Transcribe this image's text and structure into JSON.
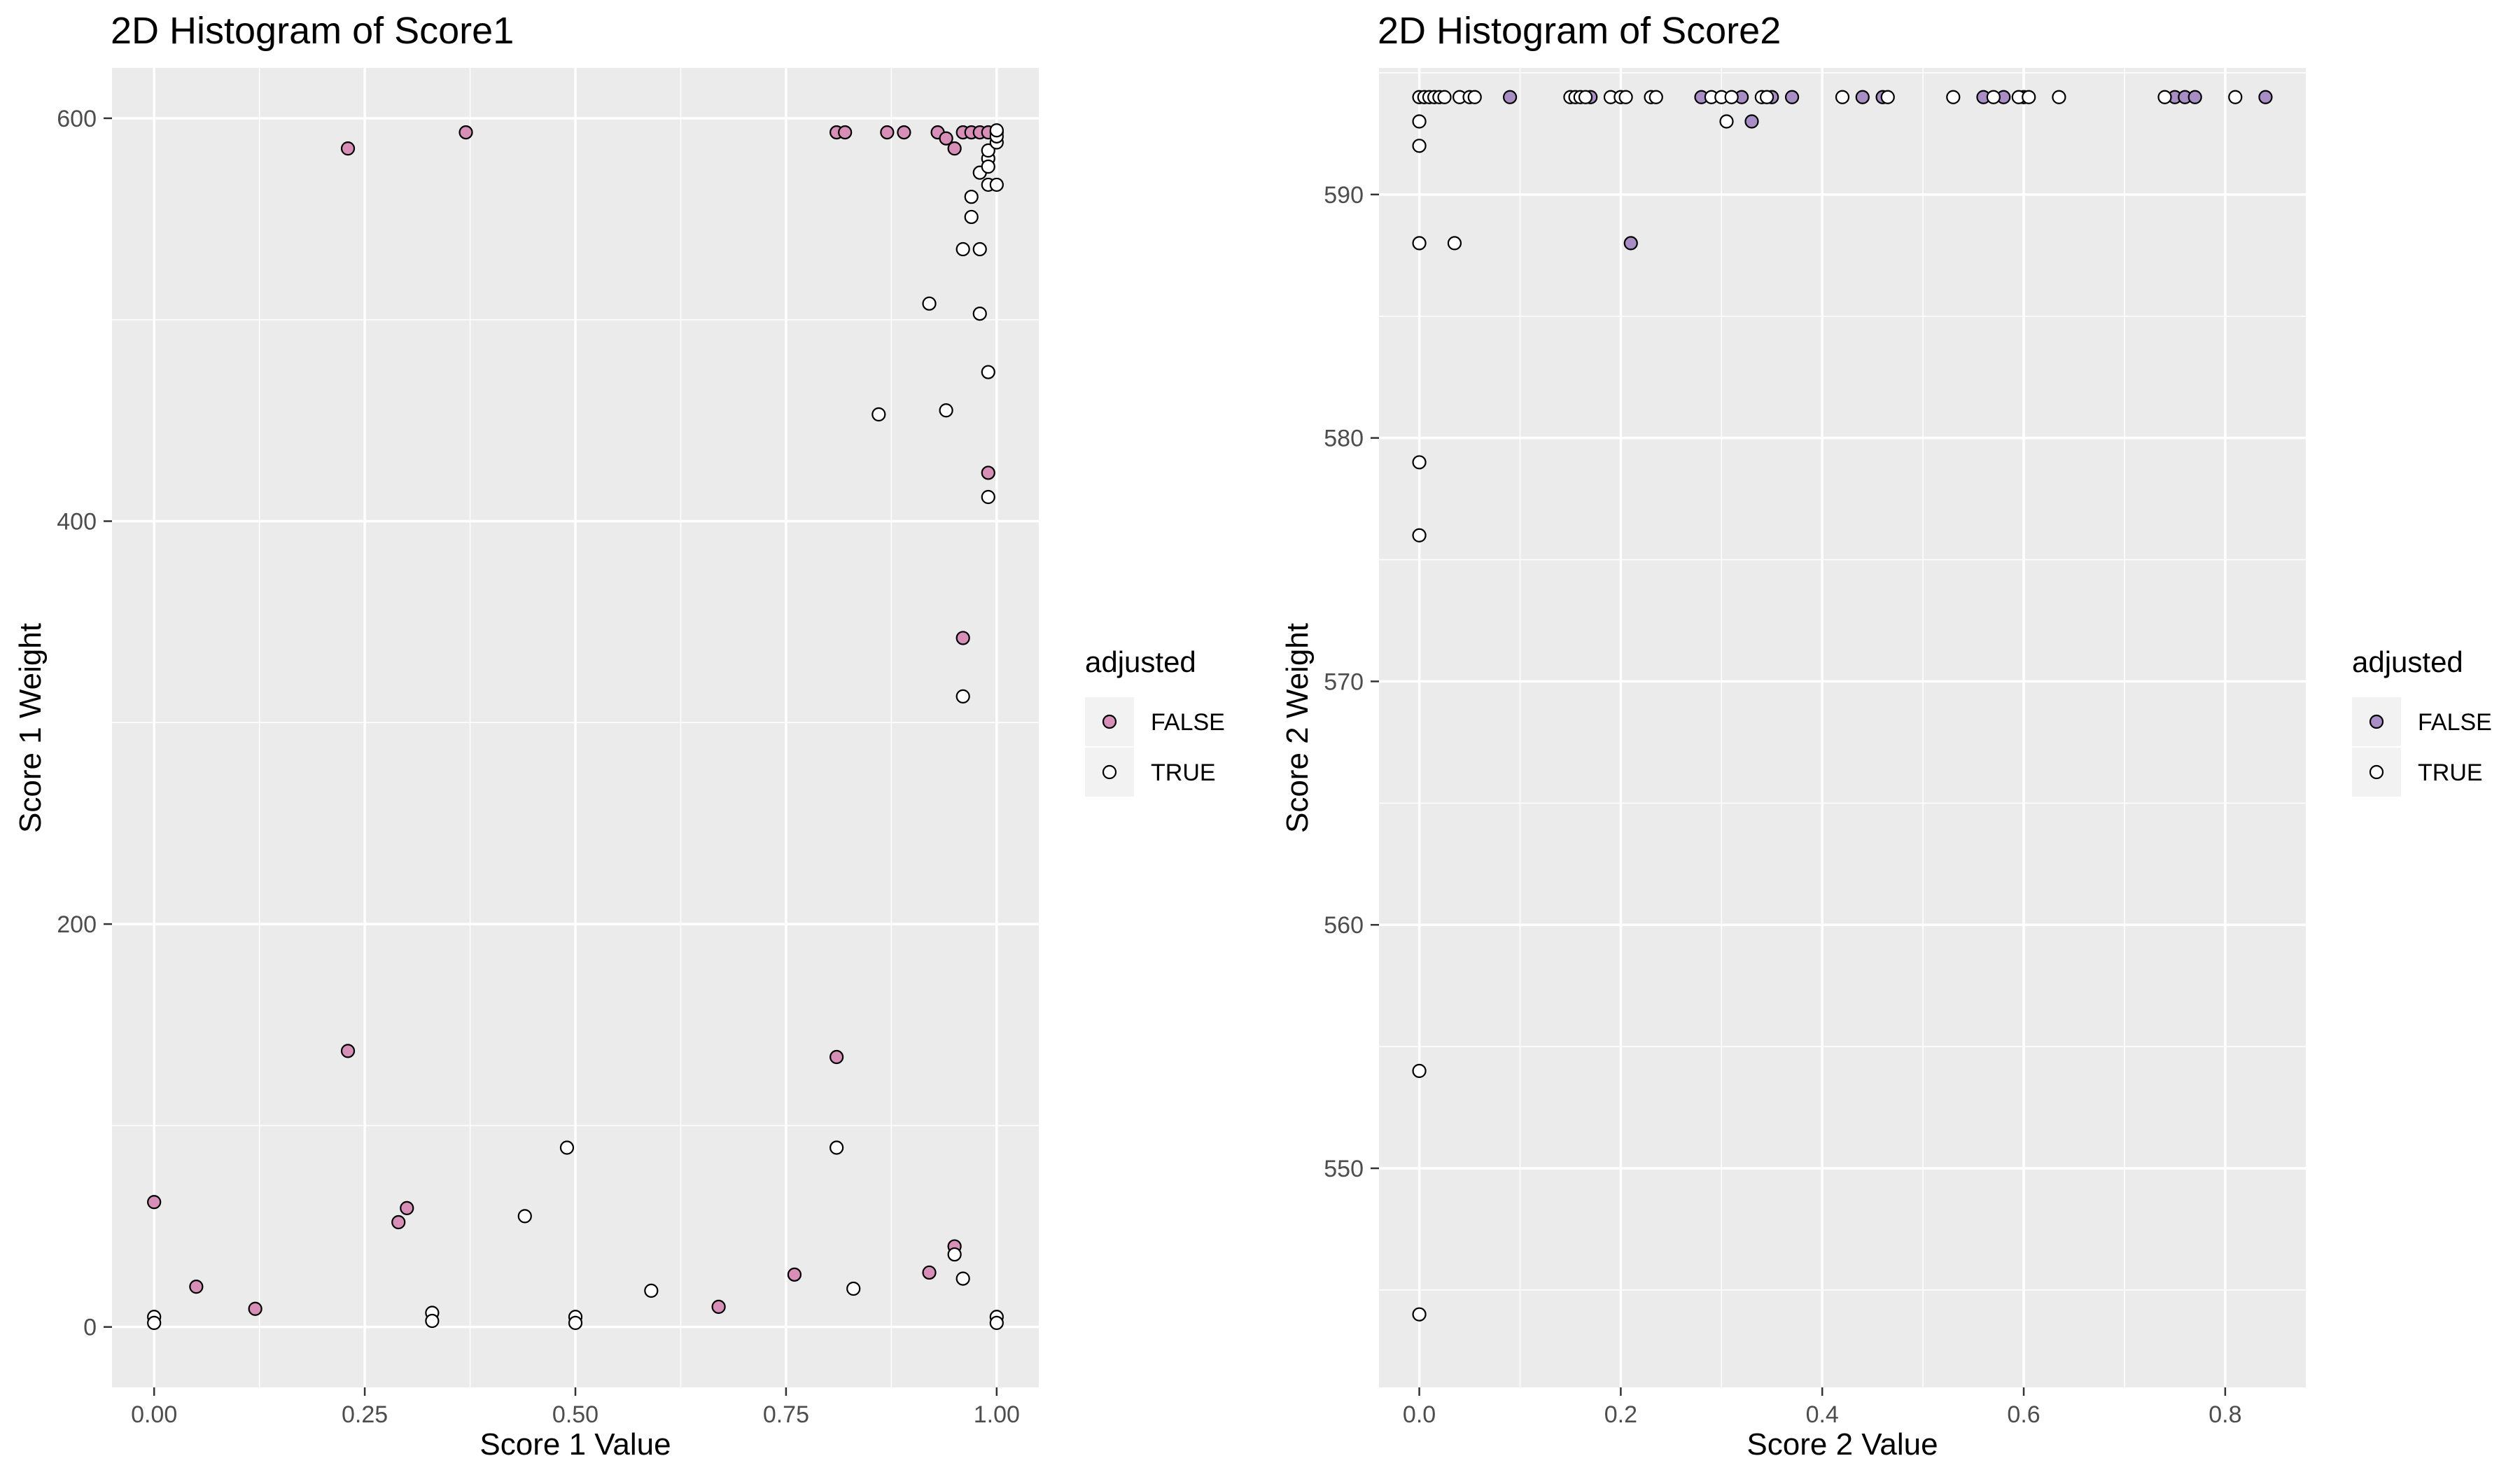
{
  "chart_data": [
    {
      "type": "scatter",
      "title": "2D Histogram of Score1",
      "xlabel": "Score 1 Value",
      "ylabel": "Score 1 Weight",
      "xlim": [
        -0.05,
        1.05
      ],
      "ylim": [
        -30,
        625
      ],
      "xticks": [
        0.0,
        0.25,
        0.5,
        0.75,
        1.0
      ],
      "xtick_labels": [
        "0.00",
        "0.25",
        "0.50",
        "0.75",
        "1.00"
      ],
      "yticks": [
        0,
        200,
        400,
        600
      ],
      "ytick_labels": [
        "0",
        "200",
        "400",
        "600"
      ],
      "grid": true,
      "legend": {
        "title": "adjusted",
        "placement": "right",
        "entries": [
          {
            "label": "FALSE",
            "color": "#d78fb8"
          },
          {
            "label": "TRUE",
            "color": "#ffffff"
          }
        ]
      },
      "series": [
        {
          "name": "FALSE",
          "color": "#d78fb8",
          "points": [
            [
              0.0,
              62
            ],
            [
              0.05,
              20
            ],
            [
              0.12,
              9
            ],
            [
              0.23,
              585
            ],
            [
              0.23,
              137
            ],
            [
              0.29,
              52
            ],
            [
              0.3,
              59
            ],
            [
              0.37,
              593
            ],
            [
              0.67,
              10
            ],
            [
              0.76,
              26
            ],
            [
              0.81,
              593
            ],
            [
              0.81,
              134
            ],
            [
              0.82,
              593
            ],
            [
              0.87,
              593
            ],
            [
              0.89,
              593
            ],
            [
              0.92,
              27
            ],
            [
              0.93,
              593
            ],
            [
              0.94,
              590
            ],
            [
              0.95,
              40
            ],
            [
              0.95,
              585
            ],
            [
              0.96,
              593
            ],
            [
              0.96,
              342
            ],
            [
              0.97,
              593
            ],
            [
              0.98,
              593
            ],
            [
              0.99,
              593
            ],
            [
              0.99,
              424
            ],
            [
              1.0,
              593
            ]
          ]
        },
        {
          "name": "TRUE",
          "color": "#ffffff",
          "points": [
            [
              0.0,
              5
            ],
            [
              0.0,
              2
            ],
            [
              0.33,
              7
            ],
            [
              0.33,
              3
            ],
            [
              0.44,
              55
            ],
            [
              0.49,
              89
            ],
            [
              0.5,
              5
            ],
            [
              0.5,
              2
            ],
            [
              0.59,
              18
            ],
            [
              0.81,
              89
            ],
            [
              0.83,
              19
            ],
            [
              0.86,
              453
            ],
            [
              0.92,
              508
            ],
            [
              0.94,
              455
            ],
            [
              0.95,
              36
            ],
            [
              0.96,
              24
            ],
            [
              0.96,
              535
            ],
            [
              0.96,
              313
            ],
            [
              0.97,
              551
            ],
            [
              0.97,
              561
            ],
            [
              0.98,
              535
            ],
            [
              0.98,
              503
            ],
            [
              0.98,
              573
            ],
            [
              0.99,
              567
            ],
            [
              0.99,
              474
            ],
            [
              0.99,
              412
            ],
            [
              0.99,
              580
            ],
            [
              0.99,
              576
            ],
            [
              0.99,
              584
            ],
            [
              1.0,
              588
            ],
            [
              1.0,
              567
            ],
            [
              1.0,
              591
            ],
            [
              1.0,
              5
            ],
            [
              1.0,
              2
            ],
            [
              1.0,
              594
            ]
          ]
        }
      ]
    },
    {
      "type": "scatter",
      "title": "2D Histogram of Score2",
      "xlabel": "Score 2 Value",
      "ylabel": "Score 2 Weight",
      "xlim": [
        -0.04,
        0.88
      ],
      "ylim": [
        541,
        595.2
      ],
      "xticks": [
        0.0,
        0.2,
        0.4,
        0.6,
        0.8
      ],
      "xtick_labels": [
        "0.0",
        "0.2",
        "0.4",
        "0.6",
        "0.8"
      ],
      "yticks": [
        550,
        560,
        570,
        580,
        590
      ],
      "ytick_labels": [
        "550",
        "560",
        "570",
        "580",
        "590"
      ],
      "grid": true,
      "legend": {
        "title": "adjusted",
        "placement": "right",
        "entries": [
          {
            "label": "FALSE",
            "color": "#a98ec6"
          },
          {
            "label": "TRUE",
            "color": "#ffffff"
          }
        ]
      },
      "series": [
        {
          "name": "FALSE",
          "color": "#a98ec6",
          "points": [
            [
              0.09,
              594
            ],
            [
              0.17,
              594
            ],
            [
              0.21,
              588
            ],
            [
              0.28,
              594
            ],
            [
              0.32,
              594
            ],
            [
              0.33,
              593
            ],
            [
              0.35,
              594
            ],
            [
              0.37,
              594
            ],
            [
              0.44,
              594
            ],
            [
              0.46,
              594
            ],
            [
              0.56,
              594
            ],
            [
              0.58,
              594
            ],
            [
              0.6,
              594
            ],
            [
              0.75,
              594
            ],
            [
              0.76,
              594
            ],
            [
              0.77,
              594
            ],
            [
              0.84,
              594
            ]
          ]
        },
        {
          "name": "TRUE",
          "color": "#ffffff",
          "points": [
            [
              0.0,
              594
            ],
            [
              0.0,
              593
            ],
            [
              0.0,
              592
            ],
            [
              0.0,
              588
            ],
            [
              0.0,
              579
            ],
            [
              0.0,
              576
            ],
            [
              0.0,
              554
            ],
            [
              0.0,
              544
            ],
            [
              0.005,
              594
            ],
            [
              0.01,
              594
            ],
            [
              0.015,
              594
            ],
            [
              0.02,
              594
            ],
            [
              0.025,
              594
            ],
            [
              0.035,
              588
            ],
            [
              0.04,
              594
            ],
            [
              0.05,
              594
            ],
            [
              0.055,
              594
            ],
            [
              0.15,
              594
            ],
            [
              0.155,
              594
            ],
            [
              0.16,
              594
            ],
            [
              0.165,
              594
            ],
            [
              0.19,
              594
            ],
            [
              0.2,
              594
            ],
            [
              0.205,
              594
            ],
            [
              0.23,
              594
            ],
            [
              0.235,
              594
            ],
            [
              0.29,
              594
            ],
            [
              0.3,
              594
            ],
            [
              0.305,
              593
            ],
            [
              0.31,
              594
            ],
            [
              0.34,
              594
            ],
            [
              0.345,
              594
            ],
            [
              0.42,
              594
            ],
            [
              0.465,
              594
            ],
            [
              0.53,
              594
            ],
            [
              0.57,
              594
            ],
            [
              0.595,
              594
            ],
            [
              0.605,
              594
            ],
            [
              0.635,
              594
            ],
            [
              0.74,
              594
            ],
            [
              0.81,
              594
            ]
          ]
        }
      ]
    }
  ]
}
